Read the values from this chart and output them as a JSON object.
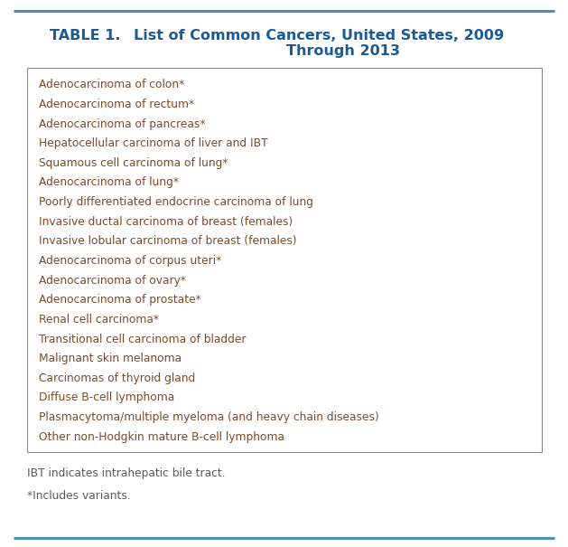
{
  "title_label": "TABLE 1.",
  "title_main": "List of Common Cancers, United States, 2009\nThrough 2013",
  "title_color": "#1a5a96",
  "background_color": "#ffffff",
  "line_color": "#4a90b8",
  "table_items": [
    "Adenocarcinoma of colon*",
    "Adenocarcinoma of rectum*",
    "Adenocarcinoma of pancreas*",
    "Hepatocellular carcinoma of liver and IBT",
    "Squamous cell carcinoma of lung*",
    "Adenocarcinoma of lung*",
    "Poorly differentiated endocrine carcinoma of lung",
    "Invasive ductal carcinoma of breast (females)",
    "Invasive lobular carcinoma of breast (females)",
    "Adenocarcinoma of corpus uteri*",
    "Adenocarcinoma of ovary*",
    "Adenocarcinoma of prostate*",
    "Renal cell carcinoma*",
    "Transitional cell carcinoma of bladder",
    "Malignant skin melanoma",
    "Carcinomas of thyroid gland",
    "Diffuse B-cell lymphoma",
    "Plasmacytoma/multiple myeloma (and heavy chain diseases)",
    "Other non-Hodgkin mature B-cell lymphoma"
  ],
  "footnote1": "IBT indicates intrahepatic bile tract.",
  "footnote2": "*Includes variants.",
  "item_text_color": "#7b4a2a",
  "footnote_color": "#5a5a5a",
  "box_edge_color": "#888888",
  "figsize": [
    6.29,
    6.05
  ],
  "dpi": 100,
  "title_fontsize": 11.5,
  "item_fontsize": 8.8,
  "footnote_fontsize": 8.8
}
